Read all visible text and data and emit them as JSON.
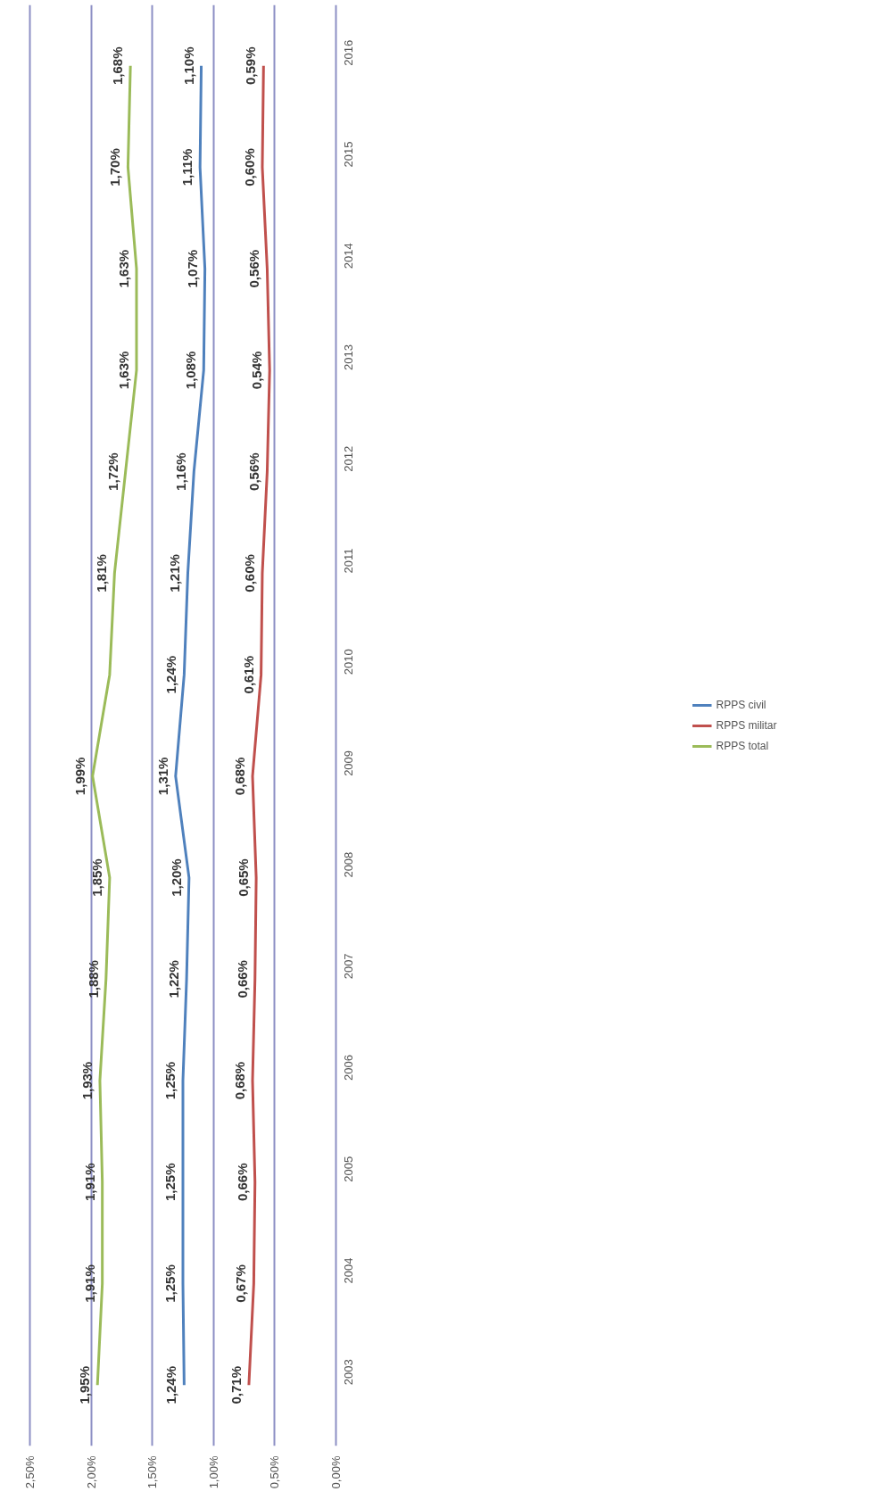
{
  "chart_data": {
    "type": "line",
    "categories": [
      "2016",
      "2015",
      "2014",
      "2013",
      "2012",
      "2011",
      "2010",
      "2009",
      "2008",
      "2007",
      "2006",
      "2005",
      "2004",
      "2003"
    ],
    "series": [
      {
        "name": "RPPS civil",
        "color": "#4f81bd",
        "values": [
          1.1,
          1.11,
          1.07,
          1.08,
          1.16,
          1.21,
          1.24,
          1.31,
          1.2,
          1.22,
          1.25,
          1.25,
          1.25,
          1.24
        ],
        "value_labels": [
          "1,10%",
          "1,11%",
          "1,07%",
          "1,08%",
          "1,16%",
          "1,21%",
          "1,24%",
          "1,31%",
          "1,20%",
          "1,22%",
          "1,25%",
          "1,25%",
          "1,25%",
          "1,24%"
        ]
      },
      {
        "name": "RPPS militar",
        "color": "#c0504d",
        "values": [
          0.59,
          0.6,
          0.56,
          0.54,
          0.56,
          0.6,
          0.61,
          0.68,
          0.65,
          0.66,
          0.68,
          0.66,
          0.67,
          0.71
        ],
        "value_labels": [
          "0,59%",
          "0,60%",
          "0,56%",
          "0,54%",
          "0,56%",
          "0,60%",
          "0,61%",
          "0,68%",
          "0,65%",
          "0,66%",
          "0,68%",
          "0,66%",
          "0,67%",
          "0,71%"
        ]
      },
      {
        "name": "RPPS total",
        "color": "#9bbb59",
        "values": [
          1.68,
          1.7,
          1.63,
          1.63,
          1.72,
          1.81,
          1.85,
          1.99,
          1.85,
          1.88,
          1.93,
          1.91,
          1.91,
          1.95
        ],
        "value_labels": [
          "1,68%",
          "1,70%",
          "1,63%",
          "1,63%",
          "1,72%",
          "1,81%",
          null,
          "1,99%",
          "1,85%",
          "1,88%",
          "1,93%",
          "1,91%",
          "1,91%",
          "1,95%"
        ]
      }
    ],
    "orientation": "horizontal",
    "xlim": [
      2.5,
      0
    ],
    "xticks": [
      {
        "value": 0,
        "label": "0,00%"
      },
      {
        "value": 0.5,
        "label": "0,50%"
      },
      {
        "value": 1,
        "label": "1,00%"
      },
      {
        "value": 1.5,
        "label": "1,50%"
      },
      {
        "value": 2,
        "label": "2,00%"
      },
      {
        "value": 2.5,
        "label": "2,50%"
      }
    ],
    "grid": "x",
    "legend": "right",
    "marker": "none",
    "line_style": "solid"
  }
}
